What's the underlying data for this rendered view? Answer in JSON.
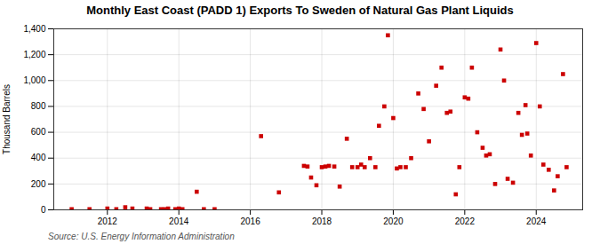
{
  "chart_data": {
    "type": "scatter",
    "title": "Monthly East Coast (PADD 1) Exports To Sweden of Natural Gas Plant Liquids",
    "ylabel": "Thousand Barrels",
    "source": "Source: U.S. Energy Information Administration",
    "color": "#cc0000",
    "marker": "square",
    "grid": true,
    "xlim": [
      2010.5,
      2025.3
    ],
    "ylim": [
      0,
      1400
    ],
    "xticks": [
      2012,
      2014,
      2016,
      2018,
      2020,
      2022,
      2024
    ],
    "yticks": [
      0,
      200,
      400,
      600,
      800,
      {
        "value": 1000,
        "label": "1,000"
      },
      {
        "value": 1200,
        "label": "1,200"
      },
      {
        "value": 1400,
        "label": "1,400"
      }
    ],
    "x": [
      2011.0,
      2011.5,
      2012.0,
      2012.25,
      2012.5,
      2012.7,
      2013.1,
      2013.2,
      2013.5,
      2013.6,
      2013.7,
      2013.9,
      2014.0,
      2014.1,
      2014.5,
      2014.7,
      2015.0,
      2016.3,
      2016.8,
      2017.5,
      2017.6,
      2017.7,
      2017.85,
      2018.0,
      2018.1,
      2018.2,
      2018.35,
      2018.5,
      2018.7,
      2018.85,
      2019.0,
      2019.1,
      2019.2,
      2019.35,
      2019.5,
      2019.6,
      2019.75,
      2019.85,
      2020.0,
      2020.1,
      2020.2,
      2020.35,
      2020.5,
      2020.7,
      2020.85,
      2021.0,
      2021.2,
      2021.35,
      2021.5,
      2021.6,
      2021.75,
      2021.85,
      2022.0,
      2022.1,
      2022.2,
      2022.35,
      2022.5,
      2022.6,
      2022.7,
      2022.85,
      2023.0,
      2023.1,
      2023.2,
      2023.35,
      2023.5,
      2023.6,
      2023.7,
      2023.75,
      2023.85,
      2024.0,
      2024.1,
      2024.2,
      2024.35,
      2024.5,
      2024.6,
      2024.75,
      2024.85
    ],
    "values": [
      5,
      5,
      10,
      5,
      20,
      10,
      10,
      5,
      5,
      5,
      10,
      5,
      10,
      5,
      140,
      5,
      5,
      570,
      135,
      340,
      335,
      250,
      190,
      330,
      335,
      340,
      335,
      180,
      550,
      330,
      330,
      350,
      330,
      400,
      330,
      650,
      800,
      1350,
      710,
      320,
      330,
      330,
      400,
      900,
      780,
      530,
      960,
      1100,
      750,
      760,
      120,
      330,
      870,
      860,
      1100,
      600,
      480,
      420,
      430,
      200,
      1240,
      1000,
      240,
      210,
      750,
      580,
      810,
      590,
      420,
      1290,
      800,
      350,
      310,
      150,
      260,
      1050,
      330
    ]
  }
}
